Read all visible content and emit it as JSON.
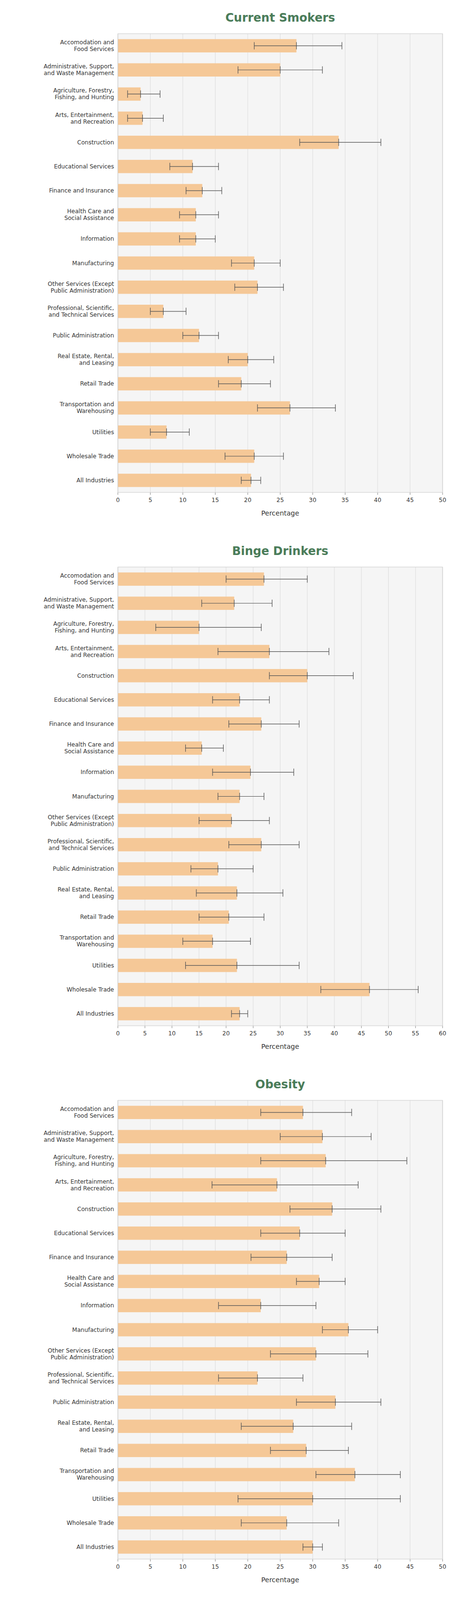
{
  "chart_data": [
    {
      "type": "bar",
      "orientation": "horizontal",
      "title": "Current Smokers",
      "categories": [
        "Accomodation and\nFood Services",
        "Administrative, Support,\nand Waste Management",
        "Agriculture, Forestry,\nFishing, and Hunting",
        "Arts, Entertainment,\nand Recreation",
        "Construction",
        "Educational Services",
        "Finance and Insurance",
        "Health Care and\nSocial Assistance",
        "Information",
        "Manufacturing",
        "Other Services (Except\nPublic Administration)",
        "Professional, Scientific,\nand Technical Services",
        "Public Administration",
        "Real Estate, Rental,\nand Leasing",
        "Retail Trade",
        "Transportation and\nWarehousing",
        "Utilities",
        "Wholesale Trade",
        "All Industries"
      ],
      "values": [
        27.5,
        25.0,
        3.5,
        3.8,
        34.0,
        11.5,
        13.0,
        12.0,
        12.0,
        21.0,
        21.5,
        7.0,
        12.5,
        20.0,
        19.0,
        26.5,
        7.5,
        21.0,
        20.5
      ],
      "ci_low": [
        21.0,
        18.5,
        1.5,
        1.5,
        28.0,
        8.0,
        10.5,
        9.5,
        9.5,
        17.5,
        18.0,
        5.0,
        10.0,
        17.0,
        15.5,
        21.5,
        5.0,
        16.5,
        19.0
      ],
      "ci_high": [
        34.5,
        31.5,
        6.5,
        7.0,
        40.5,
        15.5,
        16.0,
        15.5,
        15.0,
        25.0,
        25.5,
        10.5,
        15.5,
        24.0,
        23.5,
        33.5,
        11.0,
        25.5,
        22.0
      ],
      "color": "#f5c897",
      "xlabel": "Percentage",
      "xlim": [
        0,
        50
      ],
      "xticks": [
        0,
        5,
        10,
        15,
        20,
        25,
        30,
        35,
        40,
        45,
        50
      ],
      "grid": true
    },
    {
      "type": "bar",
      "orientation": "horizontal",
      "title": "Binge Drinkers",
      "categories": [
        "Accomodation and\nFood Services",
        "Administrative, Support,\nand Waste Management",
        "Agriculture, Forestry,\nFishing, and Hunting",
        "Arts, Entertainment,\nand Recreation",
        "Construction",
        "Educational Services",
        "Finance and Insurance",
        "Health Care and\nSocial Assistance",
        "Information",
        "Manufacturing",
        "Other Services (Except\nPublic Administration)",
        "Professional, Scientific,\nand Technical Services",
        "Public Administration",
        "Real Estate, Rental,\nand Leasing",
        "Retail Trade",
        "Transportation and\nWarehousing",
        "Utilities",
        "Wholesale Trade",
        "All Industries"
      ],
      "values": [
        27.0,
        21.5,
        15.0,
        28.0,
        35.0,
        22.5,
        26.5,
        15.5,
        24.5,
        22.5,
        21.0,
        26.5,
        18.5,
        22.0,
        20.5,
        17.5,
        22.0,
        46.5,
        22.5
      ],
      "ci_low": [
        20.0,
        15.5,
        7.0,
        18.5,
        28.0,
        17.5,
        20.5,
        12.5,
        17.5,
        18.5,
        15.0,
        20.5,
        13.5,
        14.5,
        15.0,
        12.0,
        12.5,
        37.5,
        21.0
      ],
      "ci_high": [
        35.0,
        28.5,
        26.5,
        39.0,
        43.5,
        28.0,
        33.5,
        19.5,
        32.5,
        27.0,
        28.0,
        33.5,
        25.0,
        30.5,
        27.0,
        24.5,
        33.5,
        55.5,
        24.0
      ],
      "color": "#f5c897",
      "xlabel": "Percentage",
      "xlim": [
        0,
        60
      ],
      "xticks": [
        0,
        5,
        10,
        15,
        20,
        25,
        30,
        35,
        40,
        45,
        50,
        55,
        60
      ],
      "grid": true
    },
    {
      "type": "bar",
      "orientation": "horizontal",
      "title": "Obesity",
      "categories": [
        "Accomodation and\nFood Services",
        "Administrative, Support,\nand Waste Management",
        "Agriculture, Forestry,\nFishing, and Hunting",
        "Arts, Entertainment,\nand Recreation",
        "Construction",
        "Educational Services",
        "Finance and Insurance",
        "Health Care and\nSocial Assistance",
        "Information",
        "Manufacturing",
        "Other Services (Except\nPublic Administration)",
        "Professional, Scientific,\nand Technical Services",
        "Public Administration",
        "Real Estate, Rental,\nand Leasing",
        "Retail Trade",
        "Transportation and\nWarehousing",
        "Utilities",
        "Wholesale Trade",
        "All Industries"
      ],
      "values": [
        28.5,
        31.5,
        32.0,
        24.5,
        33.0,
        28.0,
        26.0,
        31.0,
        22.0,
        35.5,
        30.5,
        21.5,
        33.5,
        27.0,
        29.0,
        36.5,
        30.0,
        26.0,
        30.0
      ],
      "ci_low": [
        22.0,
        25.0,
        22.0,
        14.5,
        26.5,
        22.0,
        20.5,
        27.5,
        15.5,
        31.5,
        23.5,
        15.5,
        27.5,
        19.0,
        23.5,
        30.5,
        18.5,
        19.0,
        28.5
      ],
      "ci_high": [
        36.0,
        39.0,
        44.5,
        37.0,
        40.5,
        35.0,
        33.0,
        35.0,
        30.5,
        40.0,
        38.5,
        28.5,
        40.5,
        36.0,
        35.5,
        43.5,
        43.5,
        34.0,
        31.5
      ],
      "color": "#f5c897",
      "xlabel": "Percentage",
      "xlim": [
        0,
        50
      ],
      "xticks": [
        0,
        5,
        10,
        15,
        20,
        25,
        30,
        35,
        40,
        45,
        50
      ],
      "grid": true
    }
  ]
}
